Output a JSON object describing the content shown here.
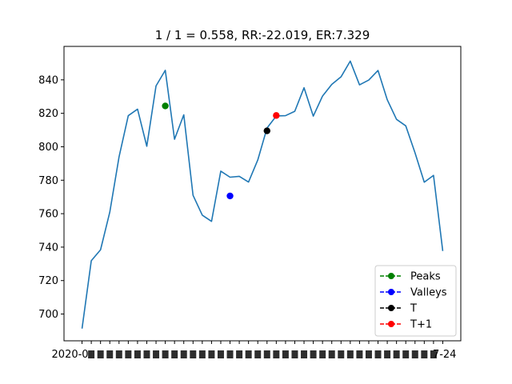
{
  "chart_data": {
    "type": "line",
    "title": "1 / 1 = 0.558, RR:-22.019, ER:7.329",
    "xlabel": "",
    "ylabel": "",
    "ylim": [
      684,
      860
    ],
    "yticks": [
      700,
      720,
      740,
      760,
      780,
      800,
      820,
      840
    ],
    "grid": false,
    "legend_placement": "lower-right",
    "series": [
      {
        "name": "",
        "color": "#1f77b4",
        "values": [
          691.3,
          731.9,
          738.4,
          760.9,
          793.9,
          818.6,
          822.5,
          800.3,
          836.4,
          845.7,
          804.5,
          819.1,
          771.0,
          759.1,
          755.4,
          785.4,
          781.8,
          782.3,
          778.9,
          792.1,
          811.2,
          818.4,
          818.6,
          821.2,
          835.3,
          818.3,
          830.3,
          837.3,
          841.8,
          851.2,
          837.0,
          839.9,
          845.6,
          828.1,
          816.4,
          812.5,
          796.4,
          778.8,
          782.9,
          737.7
        ]
      }
    ],
    "markers": [
      {
        "name": "Peaks",
        "color": "#008000",
        "x": 9,
        "y": 824.4
      },
      {
        "name": "Valleys",
        "color": "#0000ff",
        "x": 16,
        "y": 770.6
      },
      {
        "name": "T",
        "color": "#000000",
        "x": 20,
        "y": 809.5
      },
      {
        "name": "T+1",
        "color": "#ff0000",
        "x": 21,
        "y": 818.7
      }
    ],
    "x_tick_labels_note": "overlapping date labels",
    "x_tick_label_first": "2020-0",
    "x_tick_label_last": "7-24"
  }
}
